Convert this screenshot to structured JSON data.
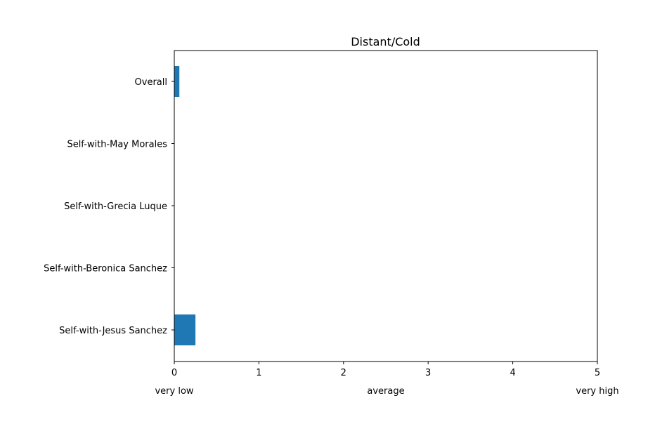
{
  "chart_data": {
    "type": "bar",
    "orientation": "horizontal",
    "title": "Distant/Cold",
    "xlabel": "",
    "ylabel": "",
    "categories": [
      "Overall",
      "Self-with-May Morales",
      "Self-with-Grecia Luque",
      "Self-with-Beronica Sanchez",
      "Self-with-Jesus Sanchez"
    ],
    "values": [
      0.06,
      0,
      0,
      0,
      0.25
    ],
    "xlim": [
      0,
      5
    ],
    "xticks": [
      "0",
      "1",
      "2",
      "3",
      "4",
      "5"
    ],
    "x_annotations": [
      {
        "value": 0,
        "text": "very low"
      },
      {
        "value": 2.5,
        "text": "average"
      },
      {
        "value": 5,
        "text": "very high"
      }
    ],
    "bar_color": "#1f77b4",
    "grid": false,
    "legend": "none"
  }
}
